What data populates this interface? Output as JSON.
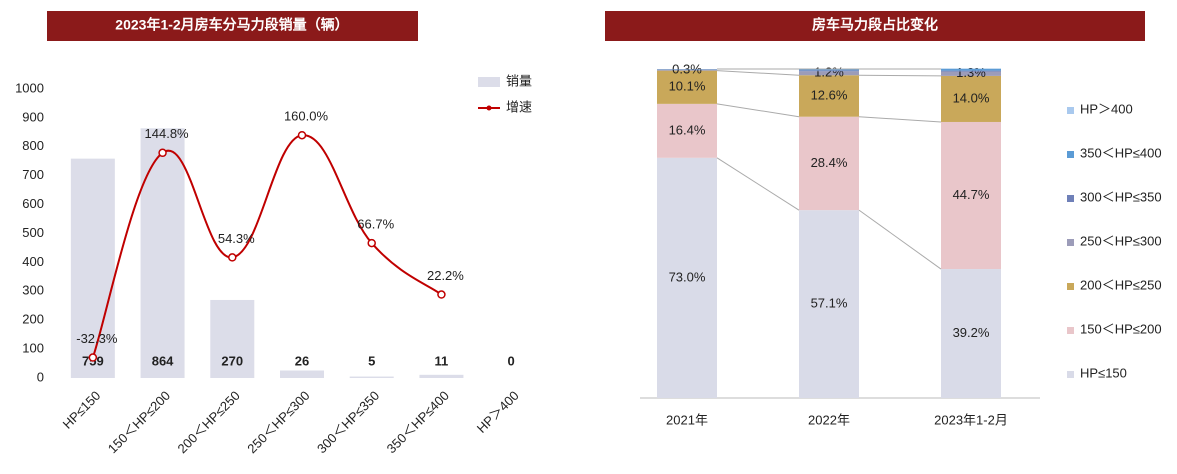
{
  "chart_data": [
    {
      "type": "bar",
      "title": "2023年1-2月房车分马力段销量（辆）",
      "categories": [
        "HP≤150",
        "150＜HP≤200",
        "200＜HP≤250",
        "250＜HP≤300",
        "300＜HP≤350",
        "350＜HP≤400",
        "HP＞400"
      ],
      "series": [
        {
          "name": "销量",
          "type": "bar",
          "color": "#dcdde9",
          "values": [
            759,
            864,
            270,
            26,
            5,
            11,
            0
          ]
        },
        {
          "name": "增速",
          "type": "line",
          "axis": "y2",
          "color": "#c00000",
          "values": [
            -32.3,
            144.8,
            54.3,
            160.0,
            66.7,
            22.2,
            null
          ],
          "value_labels": [
            "-32.3%",
            "144.8%",
            "54.3%",
            "160.0%",
            "66.7%",
            "22.2%",
            null
          ]
        }
      ],
      "ylim": [
        0,
        1000
      ],
      "yticks": [
        0,
        100,
        200,
        300,
        400,
        500,
        600,
        700,
        800,
        900,
        1000
      ],
      "y2lim": [
        -50,
        200
      ]
    },
    {
      "type": "stacked_bar",
      "title": "房车马力段占比变化",
      "categories": [
        "2021年",
        "2022年",
        "2023年1-2月"
      ],
      "series": [
        {
          "name": "HP≤150",
          "color": "#d9dbe8",
          "values": [
            73.0,
            57.1,
            39.2
          ],
          "value_labels": [
            "73.0%",
            "57.1%",
            "39.2%"
          ]
        },
        {
          "name": "150＜HP≤200",
          "color": "#e9c6ca",
          "values": [
            16.4,
            28.4,
            44.7
          ],
          "value_labels": [
            "16.4%",
            "28.4%",
            "44.7%"
          ]
        },
        {
          "name": "200＜HP≤250",
          "color": "#c9a85a",
          "values": [
            10.1,
            12.6,
            14.0
          ],
          "value_labels": [
            "10.1%",
            "12.6%",
            "14.0%"
          ]
        },
        {
          "name": "250＜HP≤300",
          "color": "#9c9cb9",
          "values": [
            0.3,
            1.2,
            1.3
          ],
          "value_labels": [
            "0.3%",
            "1.2%",
            "1.3%"
          ]
        },
        {
          "name": "300＜HP≤350",
          "color": "#6f80b8",
          "values": [
            0.1,
            0.3,
            0.3
          ]
        },
        {
          "name": "350＜HP≤400",
          "color": "#5b9bd5",
          "values": [
            0.1,
            0.4,
            0.6
          ]
        },
        {
          "name": "HP＞400",
          "color": "#a9c9ee",
          "values": [
            0.0,
            0.0,
            0.0
          ]
        }
      ],
      "ylim": [
        0,
        100
      ]
    }
  ]
}
